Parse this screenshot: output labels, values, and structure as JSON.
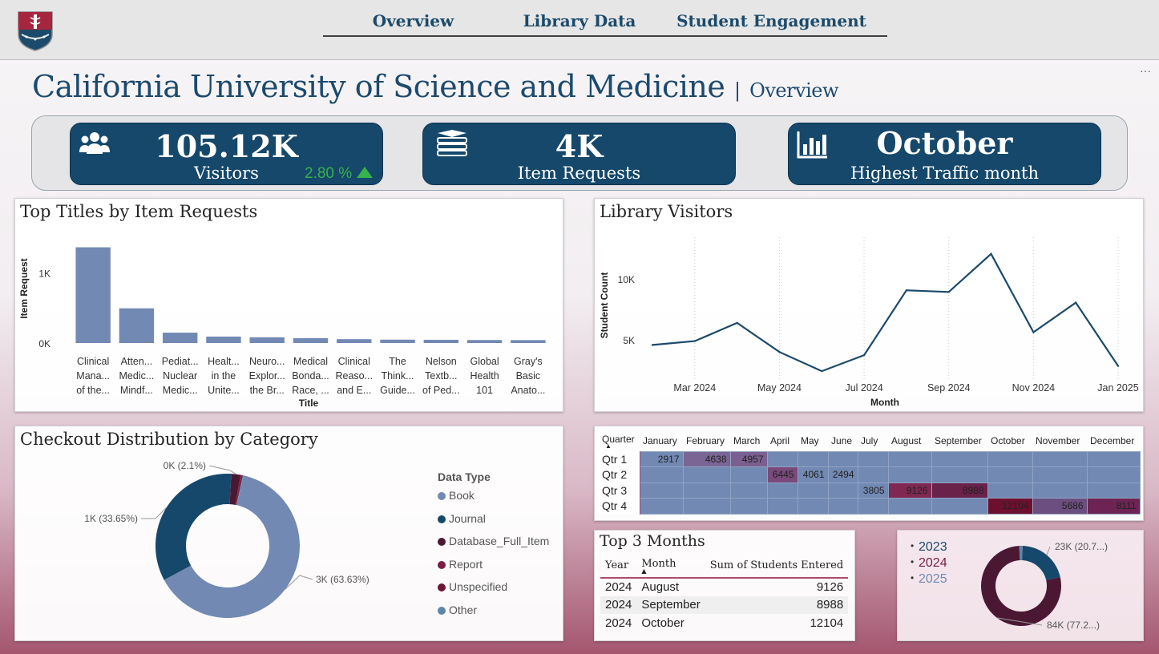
{
  "nav": {
    "tabs": [
      {
        "label": "Overview"
      },
      {
        "label": "Library Data"
      },
      {
        "label": "Student Engagement"
      }
    ],
    "more_icon": "ellipsis-icon"
  },
  "header": {
    "title": "California University of Science and Medicine",
    "separator": "|",
    "subtitle": "Overview",
    "logo_icon": "university-shield-logo"
  },
  "kpis": {
    "visitors": {
      "value": "105.12K",
      "label": "Visitors",
      "delta": "2.80 %",
      "delta_icon": "triangle-up-icon",
      "icon": "people-icon"
    },
    "requests": {
      "value": "4K",
      "label": "Item Requests",
      "icon": "books-icon"
    },
    "traffic": {
      "value": "October",
      "label": "Highest Traffic month",
      "icon": "bar-chart-icon"
    }
  },
  "colors": {
    "brand_blue": "#15486b",
    "bar": "#7289b4",
    "line": "#1b4a6b",
    "maroon": "#4b1834",
    "accent_green": "#36b24a"
  },
  "chart_data": [
    {
      "id": "top_titles",
      "type": "bar",
      "title": "Top Titles by Item Requests",
      "xlabel": "Title",
      "ylabel": "Item Request",
      "yticks": [
        "0K",
        "1K"
      ],
      "ylim": [
        0,
        1600
      ],
      "categories": [
        [
          "Clinical",
          "Mana...",
          "of the..."
        ],
        [
          "Atten...",
          "Medic...",
          "Mindf..."
        ],
        [
          "Pediat...",
          "Nuclear",
          "Medic..."
        ],
        [
          "Healt...",
          "in the",
          "Unite..."
        ],
        [
          "Neuro...",
          "Explor...",
          "the Br..."
        ],
        [
          "Medical",
          "Bonda...",
          "Race, ..."
        ],
        [
          "Clinical",
          "Reaso...",
          "and E..."
        ],
        [
          "The",
          "Think...",
          "Guide..."
        ],
        [
          "Nelson",
          "Textb...",
          "of Ped..."
        ],
        [
          "Global",
          "Health",
          "101"
        ],
        [
          "Gray's",
          "Basic",
          "Anato..."
        ]
      ],
      "values": [
        1365,
        495,
        148,
        92,
        82,
        70,
        55,
        48,
        46,
        43,
        42
      ],
      "grid": false
    },
    {
      "id": "library_visitors",
      "type": "line",
      "title": "Library Visitors",
      "xlabel": "Month",
      "ylabel": "Student Count",
      "xtick_labels": [
        "Mar 2024",
        "May 2024",
        "Jul 2024",
        "Sep 2024",
        "Nov 2024",
        "Jan 2025"
      ],
      "yticks": [
        "5K",
        "10K"
      ],
      "ylim": [
        0,
        14000
      ],
      "x": [
        "Feb 2024",
        "Mar 2024",
        "Apr 2024",
        "May 2024",
        "Jun 2024",
        "Jul 2024",
        "Aug 2024",
        "Sep 2024",
        "Oct 2024",
        "Nov 2024",
        "Dec 2024",
        "Jan 2025"
      ],
      "values": [
        4638,
        4957,
        6445,
        4061,
        2494,
        3805,
        9126,
        8988,
        12104,
        5686,
        8111,
        2917
      ],
      "grid": "vertical dotted"
    },
    {
      "id": "checkout_distribution",
      "type": "pie",
      "title": "Checkout Distribution by Category",
      "legend_title": "Data Type",
      "legend_position": "right",
      "slices": [
        {
          "name": "Book",
          "percent": 63.63,
          "label": "3K (63.63%)",
          "color": "#7289b4"
        },
        {
          "name": "Journal",
          "percent": 33.65,
          "label": "1K (33.65%)",
          "color": "#15486b"
        },
        {
          "name": "Database_Full_Item",
          "percent": 2.1,
          "label": "0K (2.1%)",
          "color": "#4b1834"
        },
        {
          "name": "Report",
          "percent": 0.3,
          "label": "",
          "color": "#7a1d45"
        },
        {
          "name": "Unspecified",
          "percent": 0.2,
          "label": "",
          "color": "#6d1536"
        },
        {
          "name": "Other",
          "percent": 0.12,
          "label": "",
          "color": "#5e86aa"
        }
      ]
    },
    {
      "id": "year_donut",
      "type": "pie",
      "legend_position": "left",
      "slices": [
        {
          "name": "2023",
          "percent": 1.4,
          "label": "",
          "color": "#5e86aa"
        },
        {
          "name": "2024",
          "percent": 77.2,
          "label": "84K (77.2...)",
          "color": "#4b1834"
        },
        {
          "name": "2025",
          "percent": 20.7,
          "label": "23K (20.7...)",
          "color": "#15486b"
        }
      ],
      "legend": [
        {
          "name": "2023",
          "color": "#1c4a6e"
        },
        {
          "name": "2024",
          "color": "#7a1d45"
        },
        {
          "name": "2025",
          "color": "#7289b4"
        }
      ]
    }
  ],
  "matrix": {
    "corner": "Quarter",
    "sort_icon": "sort-up-icon",
    "months": [
      "January",
      "February",
      "March",
      "April",
      "May",
      "June",
      "July",
      "August",
      "September",
      "October",
      "November",
      "December"
    ],
    "rows": [
      {
        "label": "Qtr 1",
        "cells": [
          "2917",
          "4638",
          "4957",
          "",
          "",
          "",
          "",
          "",
          "",
          "",
          "",
          ""
        ]
      },
      {
        "label": "Qtr 2",
        "cells": [
          "",
          "",
          "",
          "6445",
          "4061",
          "2494",
          "",
          "",
          "",
          "",
          "",
          ""
        ]
      },
      {
        "label": "Qtr 3",
        "cells": [
          "",
          "",
          "",
          "",
          "",
          "",
          "3805",
          "9126",
          "8988",
          "",
          "",
          ""
        ]
      },
      {
        "label": "Qtr 4",
        "cells": [
          "",
          "",
          "",
          "",
          "",
          "",
          "",
          "",
          "",
          "12104",
          "5686",
          "8111"
        ]
      }
    ]
  },
  "top3": {
    "title": "Top 3 Months",
    "columns": [
      "Year",
      "Month",
      "Sum of Students Entered"
    ],
    "sort_icon": "sort-up-icon",
    "rows": [
      [
        "2024",
        "August",
        "9126"
      ],
      [
        "2024",
        "September",
        "8988"
      ],
      [
        "2024",
        "October",
        "12104"
      ]
    ]
  }
}
